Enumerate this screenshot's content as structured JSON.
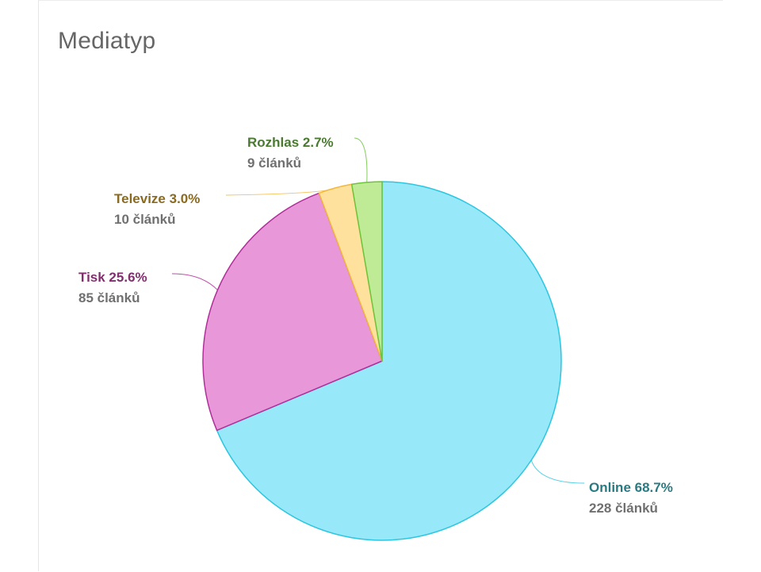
{
  "card": {
    "title": "Mediatyp"
  },
  "chart_data": {
    "type": "pie",
    "title": "Mediatyp",
    "start_angle_deg": 0,
    "direction": "clockwise",
    "slices": [
      {
        "label": "Online",
        "percent_text": "68.7%",
        "count_text": "228 článků",
        "value": 228,
        "fill": "#97e8f8",
        "stroke": "#2cc6e0",
        "label_color": "#2a7a82"
      },
      {
        "label": "Tisk",
        "percent_text": "25.6%",
        "count_text": "85 článků",
        "value": 85,
        "fill": "#e897d9",
        "stroke": "#b0309a",
        "label_color": "#80306e"
      },
      {
        "label": "Televize",
        "percent_text": "3.0%",
        "count_text": "10 článků",
        "value": 10,
        "fill": "#fde19c",
        "stroke": "#f3b73e",
        "label_color": "#8a6a20"
      },
      {
        "label": "Rozhlas",
        "percent_text": "2.7%",
        "count_text": "9 článků",
        "value": 9,
        "fill": "#bfeb96",
        "stroke": "#6cc43c",
        "label_color": "#4a7a30"
      }
    ]
  }
}
